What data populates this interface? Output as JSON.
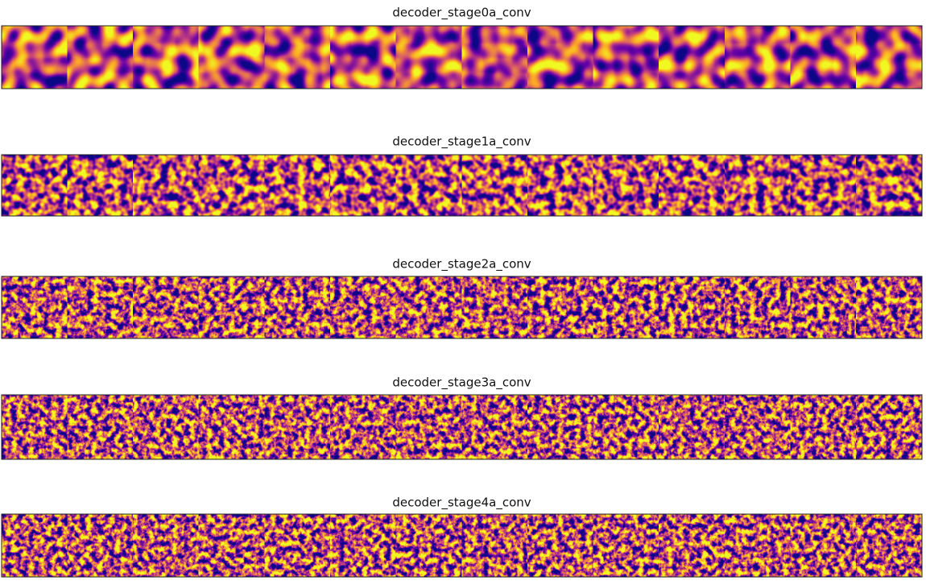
{
  "panels": [
    {
      "title": "decoder_stage0a_conv"
    },
    {
      "title": "decoder_stage1a_conv"
    },
    {
      "title": "decoder_stage2a_conv"
    },
    {
      "title": "decoder_stage3a_conv"
    },
    {
      "title": "decoder_stage4a_conv"
    }
  ]
}
